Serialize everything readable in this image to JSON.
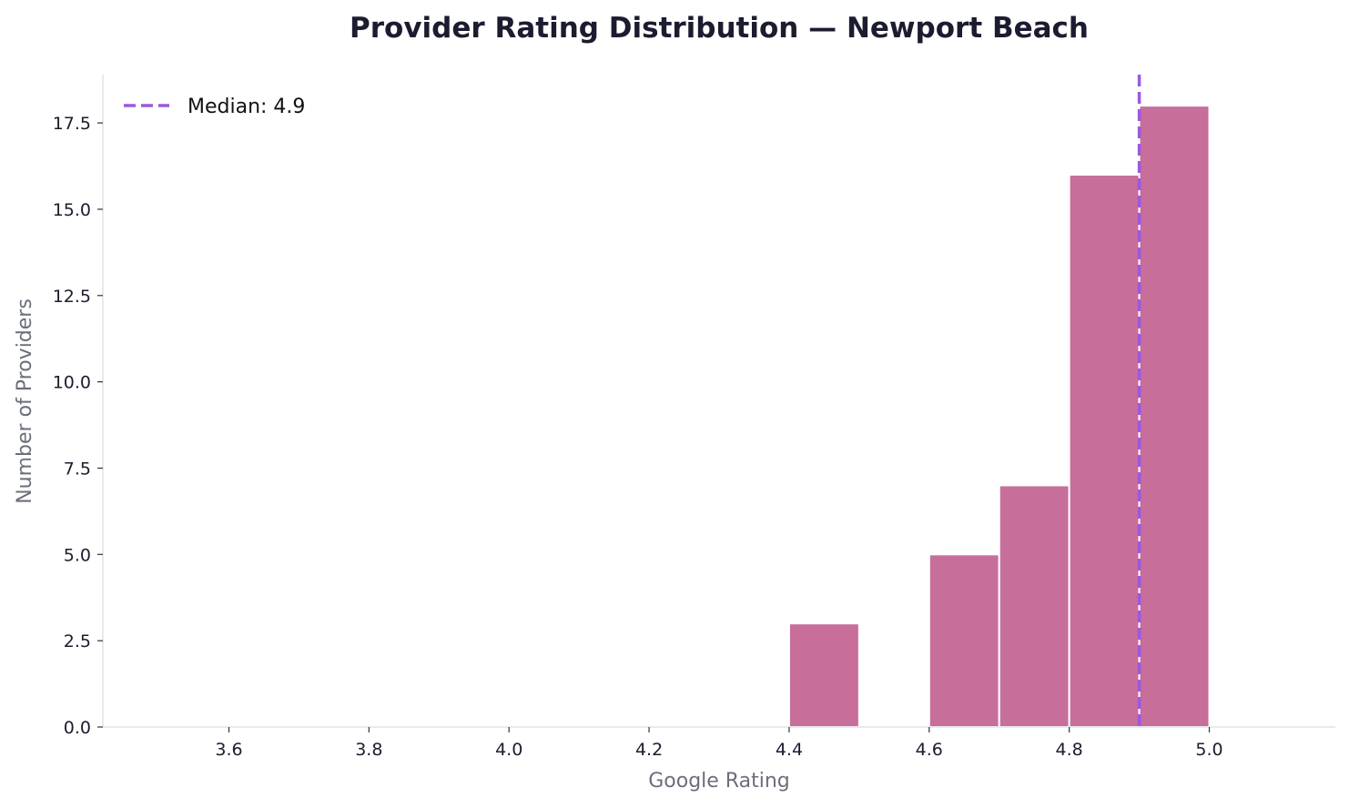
{
  "chart_data": {
    "type": "bar",
    "title": "Provider Rating Distribution — Newport Beach",
    "xlabel": "Google Rating",
    "ylabel": "Number of Providers",
    "bins": [
      {
        "start": 4.4,
        "end": 4.5,
        "count": 3
      },
      {
        "start": 4.6,
        "end": 4.7,
        "count": 5
      },
      {
        "start": 4.7,
        "end": 4.8,
        "count": 7
      },
      {
        "start": 4.8,
        "end": 4.9,
        "count": 16
      },
      {
        "start": 4.9,
        "end": 5.0,
        "count": 18
      }
    ],
    "xlim": [
      3.42,
      5.18
    ],
    "ylim": [
      0,
      18.9
    ],
    "xticks": [
      "3.6",
      "3.8",
      "4.0",
      "4.2",
      "4.4",
      "4.6",
      "4.8",
      "5.0"
    ],
    "yticks": [
      "0.0",
      "2.5",
      "5.0",
      "7.5",
      "10.0",
      "12.5",
      "15.0",
      "17.5"
    ],
    "median": 4.9,
    "legend": {
      "label": "Median: 4.9",
      "position": "top-left"
    },
    "grid": false,
    "colors": {
      "bar": "#c76e9b",
      "median": "#9b59e0",
      "title": "#1c1c30",
      "axis_label": "#6b6f7b"
    }
  }
}
